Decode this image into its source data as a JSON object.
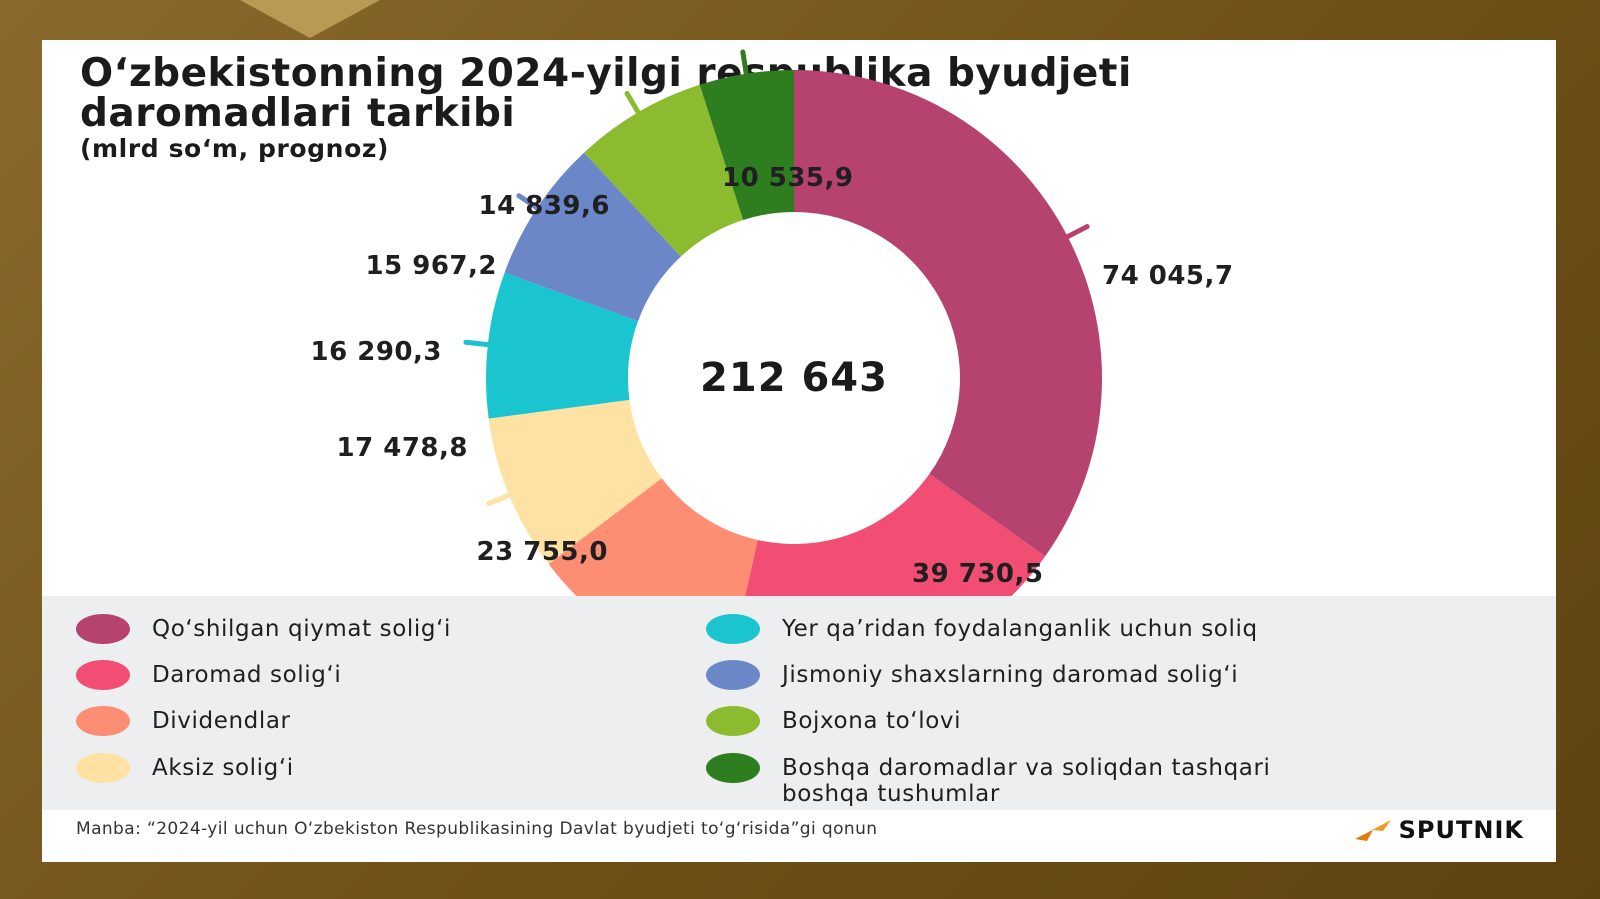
{
  "title": "O‘zbekistonning 2024-yilgi respublika byudjeti daromadlari tarkibi",
  "subtitle": "(mlrd so‘m, prognoz)",
  "center_total": "212 643",
  "source": "Manba: “2024-yil uchun O‘zbekiston Respublikasining Davlat byudjeti to‘g‘risida”gi qonun",
  "logo_text": "SPUTNIK",
  "colors": {
    "logo_orange": "#f39a1e",
    "legend_bg": "#eceef0"
  },
  "chart_data": {
    "type": "pie",
    "donut": true,
    "total": 212643,
    "slices": [
      {
        "name": "Qo‘shilgan qiymat solig‘i",
        "value": 74045.7,
        "label": "74 045,7",
        "color": "#b6426f"
      },
      {
        "name": "Daromad solig‘i",
        "value": 39730.5,
        "label": "39 730,5",
        "color": "#f24d72"
      },
      {
        "name": "Dividendlar",
        "value": 23755.0,
        "label": "23 755,0",
        "color": "#fd8d73"
      },
      {
        "name": "Aksiz solig‘i",
        "value": 17478.8,
        "label": "17 478,8",
        "color": "#fde2a3"
      },
      {
        "name": "Yer qa’ridan foydalanganlik uchun soliq",
        "value": 16290.3,
        "label": "16 290,3",
        "color": "#1bc5d0"
      },
      {
        "name": "Jismoniy shaxslarning daromad solig‘i",
        "value": 15967.2,
        "label": "15 967,2",
        "color": "#6b87c8"
      },
      {
        "name": "Bojxona to‘lovi",
        "value": 14839.6,
        "label": "14 839,6",
        "color": "#8dbb2f"
      },
      {
        "name": "Boshqa daromadlar va soliqdan tashqari boshqa tushumlar",
        "value": 10535.9,
        "label": "10 535,9",
        "color": "#2e7d1f"
      }
    ],
    "legend_columns": [
      [
        "Qo‘shilgan qiymat solig‘i",
        "Daromad solig‘i",
        "Dividendlar",
        "Aksiz solig‘i"
      ],
      [
        "Yer qa’ridan foydalanganlik uchun soliq",
        "Jismoniy shaxslarning daromad solig‘i",
        "Bojxona to‘lovi",
        "Boshqa daromadlar va soliqdan tashqari boshqa tushumlar"
      ]
    ]
  }
}
